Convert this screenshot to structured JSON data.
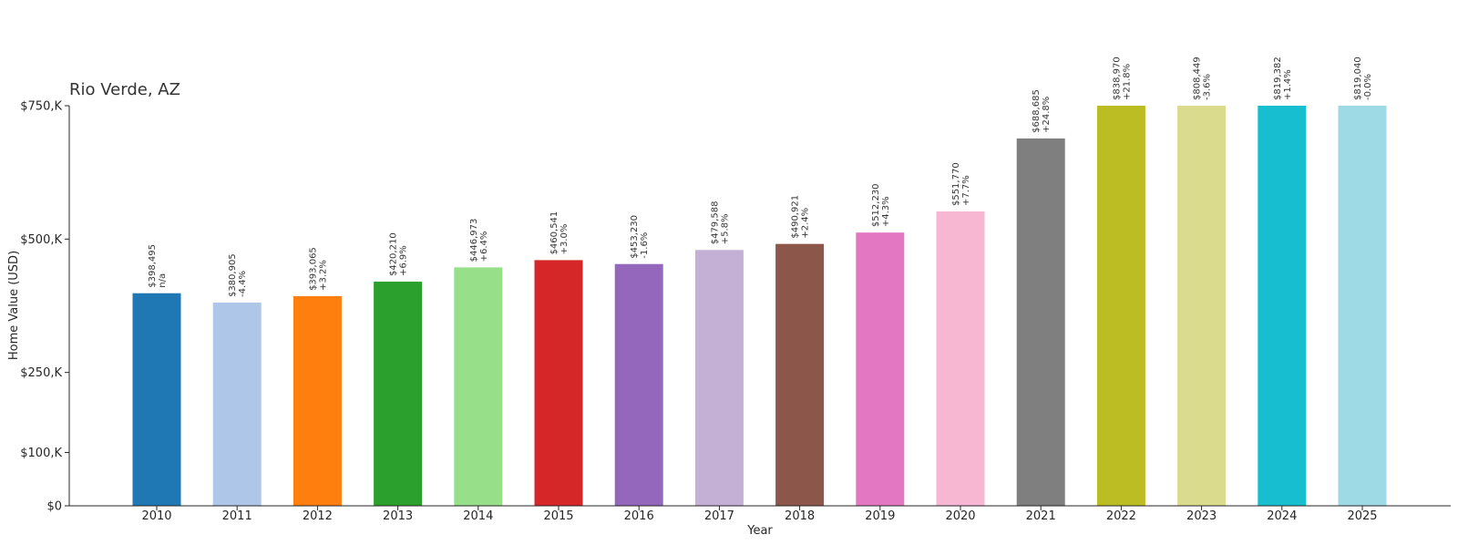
{
  "chart_data": {
    "type": "bar",
    "title": "Rio Verde, AZ",
    "xlabel": "Year",
    "ylabel": "Home Value (USD)",
    "ylim": [
      0,
      750000
    ],
    "yticks": [
      {
        "value": 0,
        "label": "$0"
      },
      {
        "value": 100000,
        "label": "$100,K"
      },
      {
        "value": 250000,
        "label": "$250,K"
      },
      {
        "value": 500000,
        "label": "$500,K"
      },
      {
        "value": 750000,
        "label": "$750,K"
      }
    ],
    "categories": [
      "2010",
      "2011",
      "2012",
      "2013",
      "2014",
      "2015",
      "2016",
      "2017",
      "2018",
      "2019",
      "2020",
      "2021",
      "2022",
      "2023",
      "2024",
      "2025"
    ],
    "values": [
      398495,
      380905,
      393065,
      420210,
      446973,
      460541,
      453230,
      479588,
      490921,
      512230,
      551770,
      688685,
      838970,
      808449,
      819382,
      819040
    ],
    "value_labels": [
      "$398,495",
      "$380,905",
      "$393,065",
      "$420,210",
      "$446,973",
      "$460,541",
      "$453,230",
      "$479,588",
      "$490,921",
      "$512,230",
      "$551,770",
      "$688,685",
      "$838,970",
      "$808,449",
      "$819,382",
      "$819,040"
    ],
    "change_labels": [
      "n/a",
      "-4.4%",
      "+3.2%",
      "+6.9%",
      "+6.4%",
      "+3.0%",
      "-1.6%",
      "+5.8%",
      "+2.4%",
      "+4.3%",
      "+7.7%",
      "+24.8%",
      "+21.8%",
      "-3.6%",
      "+1.4%",
      "-0.0%"
    ],
    "colors": [
      "#1f77b4",
      "#aec7e8",
      "#ff7f0e",
      "#2ca02c",
      "#98df8a",
      "#d62728",
      "#9467bd",
      "#c5b0d5",
      "#8c564b",
      "#e377c2",
      "#f7b6d2",
      "#7f7f7f",
      "#bcbd22",
      "#dbdb8d",
      "#17becf",
      "#9edae5"
    ]
  }
}
